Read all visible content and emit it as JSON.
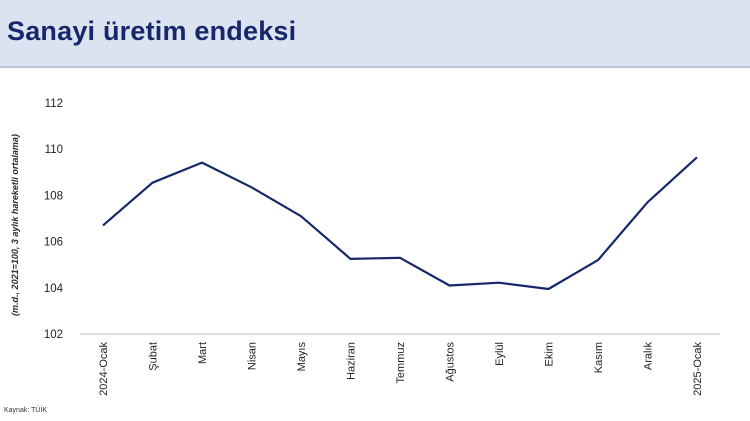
{
  "header": {
    "title": "Sanayi üretim endeksi"
  },
  "source": "Kaynak: TÜİK",
  "chart_data": {
    "type": "line",
    "title": "",
    "ylabel": "(m.d., 2021=100, 3 aylık hareketli ortalama)",
    "xlabel": "",
    "ylim": [
      102,
      112
    ],
    "yticks": [
      102,
      104,
      106,
      108,
      110,
      112
    ],
    "grid": false,
    "legend": "none",
    "line_color": "#17286a",
    "categories": [
      "2024-Ocak",
      "Şubat",
      "Mart",
      "Nisan",
      "Mayıs",
      "Haziran",
      "Temmuz",
      "Ağustos",
      "Eylül",
      "Ekim",
      "Kasım",
      "Aralık",
      "2025-Ocak"
    ],
    "series": [
      {
        "values": [
          106.7,
          108.55,
          109.42,
          108.35,
          107.1,
          105.25,
          105.3,
          104.1,
          104.22,
          103.95,
          105.2,
          107.7,
          109.65
        ]
      }
    ]
  }
}
